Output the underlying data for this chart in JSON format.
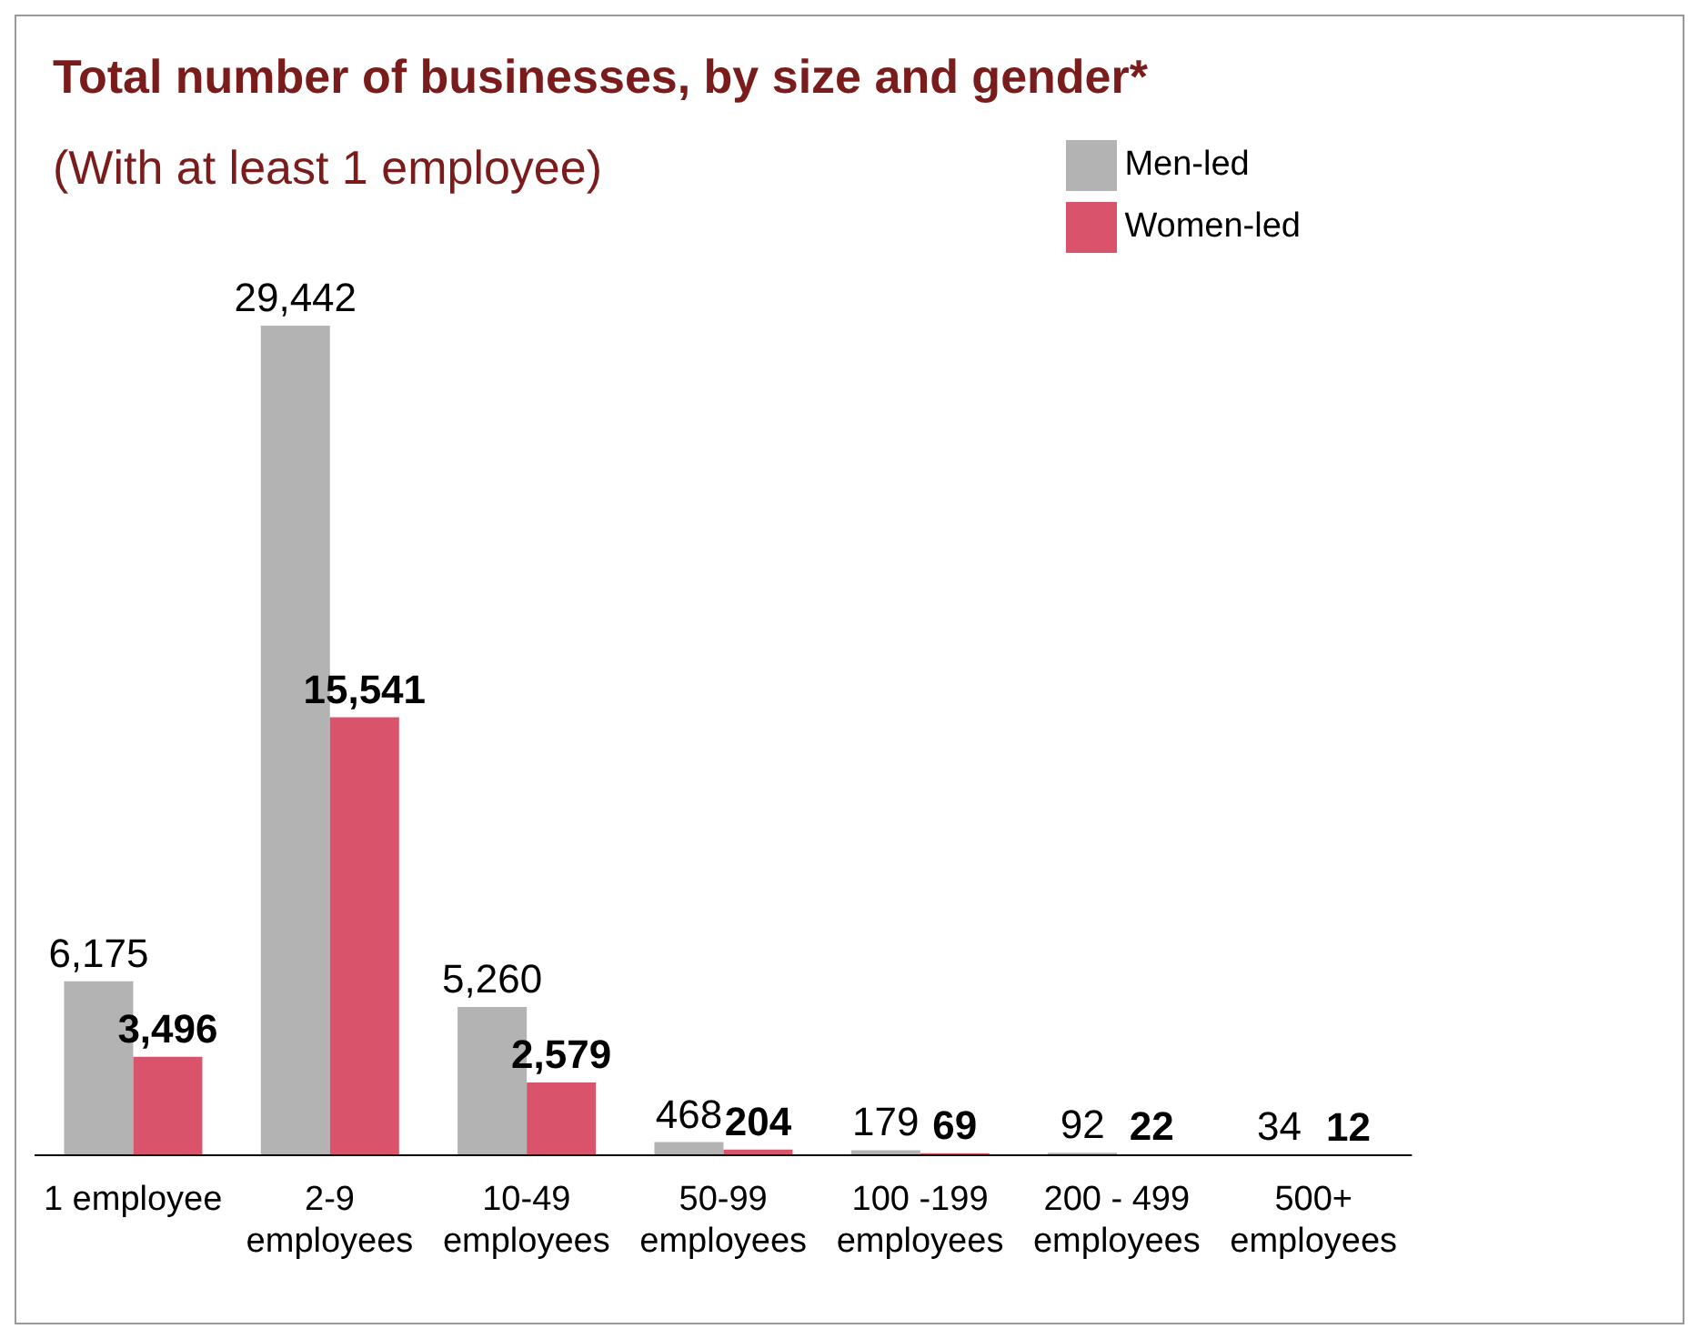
{
  "chart_data": {
    "type": "bar",
    "title": "Total number of businesses, by size and gender*",
    "subtitle": "(With at least 1 employee)",
    "categories": [
      "1 employee",
      "2-9\nemployees",
      "10-49\nemployees",
      "50-99\nemployees",
      "100 -199\nemployees",
      "200 - 499\nemployees",
      "500+\nemployees"
    ],
    "series": [
      {
        "name": "Men-led",
        "color": "#b3b3b3",
        "values": [
          6175,
          29442,
          5260,
          468,
          179,
          92,
          34
        ],
        "value_labels": [
          "6,175",
          "29,442",
          "5,260",
          "468",
          "179",
          "92",
          "34"
        ]
      },
      {
        "name": "Women-led",
        "color": "#d9546b",
        "values": [
          3496,
          15541,
          2579,
          204,
          69,
          22,
          12
        ],
        "value_labels": [
          "3,496",
          "15,541",
          "2,579",
          "204",
          "69",
          "22",
          "12"
        ]
      }
    ],
    "legend": "top right",
    "grid": false
  }
}
